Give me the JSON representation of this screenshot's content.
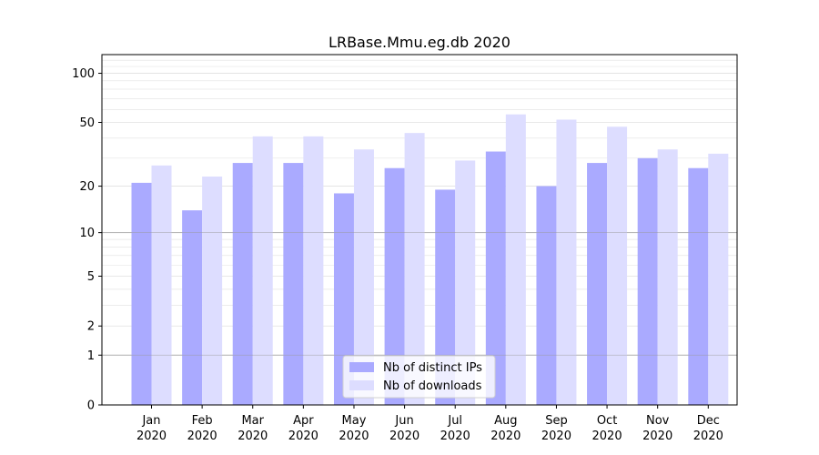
{
  "chart_data": {
    "type": "bar",
    "title": "LRBase.Mmu.eg.db 2020",
    "xlabel": "",
    "ylabel": "",
    "y_scale": "log1p",
    "ylim": [
      0,
      130
    ],
    "y_ticks": [
      0,
      1,
      2,
      5,
      10,
      20,
      50,
      100
    ],
    "y_tick_labels": [
      "0",
      "1",
      "2",
      "5",
      "10",
      "20",
      "50",
      "100"
    ],
    "categories": [
      [
        "Jan",
        "2020"
      ],
      [
        "Feb",
        "2020"
      ],
      [
        "Mar",
        "2020"
      ],
      [
        "Apr",
        "2020"
      ],
      [
        "May",
        "2020"
      ],
      [
        "Jun",
        "2020"
      ],
      [
        "Jul",
        "2020"
      ],
      [
        "Aug",
        "2020"
      ],
      [
        "Sep",
        "2020"
      ],
      [
        "Oct",
        "2020"
      ],
      [
        "Nov",
        "2020"
      ],
      [
        "Dec",
        "2020"
      ]
    ],
    "series": [
      {
        "name": "Nb of distinct IPs",
        "color": "#aaaaff",
        "values": [
          21,
          14,
          28,
          28,
          18,
          26,
          19,
          33,
          20,
          28,
          30,
          26
        ]
      },
      {
        "name": "Nb of downloads",
        "color": "#ddddff",
        "values": [
          27,
          23,
          41,
          41,
          34,
          43,
          29,
          56,
          52,
          47,
          34,
          32
        ]
      }
    ],
    "legend": {
      "placement": "bottom-center"
    },
    "grid": true
  }
}
